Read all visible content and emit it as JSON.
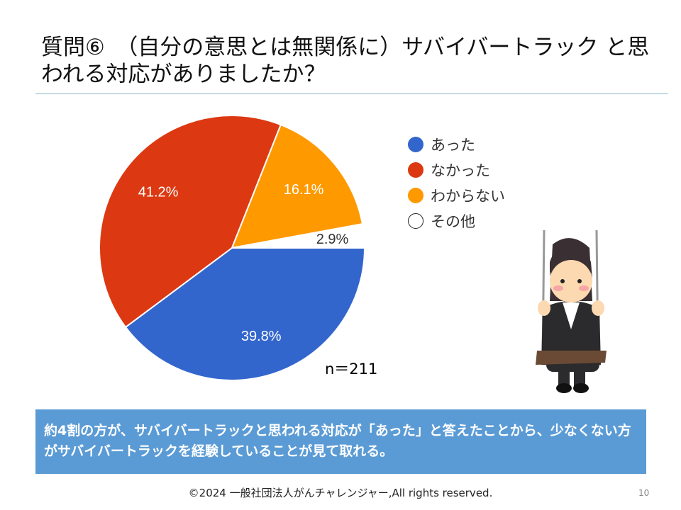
{
  "title": "質問⑥　（自分の意思とは無関係に）サバイバートラック と思われる対応がありましたか？",
  "sample_size": "n＝211",
  "summary": "約4割の方が、サバイバートラックと思われる対応が「あった」と答えたことから、少なくない方がサバイバートラックを経験していることが見て取れる。",
  "footer": "©2024 一般社団法人がんチャレンジャー,All rights reserved.",
  "page_number": "10",
  "chart_data": {
    "type": "pie",
    "title": "質問⑥ （自分の意思とは無関係に）サバイバートラックと思われる対応がありましたか？",
    "categories": [
      "あった",
      "なかった",
      "わからない",
      "その他"
    ],
    "values": [
      39.8,
      41.2,
      16.1,
      2.9
    ],
    "labels": [
      "39.8%",
      "41.2%",
      "16.1%",
      "2.9%"
    ],
    "colors": [
      "#3366cc",
      "#dc3912",
      "#ff9900",
      "#ffffff"
    ],
    "legend_position": "right"
  }
}
